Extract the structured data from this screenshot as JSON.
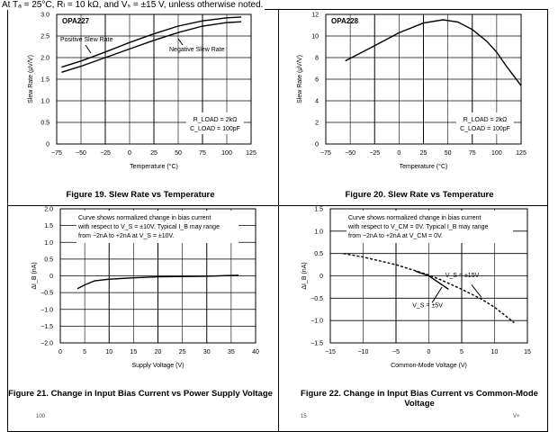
{
  "header": "At Tₐ = 25°C, Rₗ = 10 kΩ, and Vₛ = ±15 V, unless otherwise noted.",
  "bottom_partial": {
    "left": "100",
    "right_a": "15",
    "right_b": "V+"
  },
  "chart_data": [
    {
      "type": "line",
      "caption": "Figure 19. Slew Rate vs Temperature",
      "xlabel": "Temperature (°C)",
      "ylabel": "Slew Rate (µV/V)",
      "xlim": [
        -75,
        125
      ],
      "ylim": [
        0,
        3.0
      ],
      "xticks": [
        "−75",
        "−50",
        "−25",
        "0",
        "25",
        "50",
        "75",
        "100",
        "125"
      ],
      "yticks": [
        "0",
        "0.5",
        "1.0",
        "1.5",
        "2.0",
        "2.5",
        "3.0"
      ],
      "grid": true,
      "annotations": [
        "OPA227",
        "Positive Slew Rate",
        "Negative Slew Rate",
        "R_LOAD = 2kΩ",
        "C_LOAD = 100pF"
      ],
      "series": [
        {
          "name": "Positive Slew Rate",
          "style": "solid",
          "x": [
            -70,
            -50,
            -25,
            0,
            25,
            50,
            75,
            100,
            115
          ],
          "y": [
            1.78,
            1.92,
            2.13,
            2.35,
            2.55,
            2.73,
            2.85,
            2.92,
            2.94
          ]
        },
        {
          "name": "Negative Slew Rate",
          "style": "solid",
          "x": [
            -70,
            -50,
            -25,
            0,
            25,
            50,
            75,
            100,
            115
          ],
          "y": [
            1.66,
            1.8,
            2.0,
            2.2,
            2.4,
            2.58,
            2.73,
            2.81,
            2.83
          ]
        }
      ]
    },
    {
      "type": "line",
      "caption": "Figure 20. Slew Rate vs Temperature",
      "xlabel": "Temperature (°C)",
      "ylabel": "Slew Rate (µV/V)",
      "xlim": [
        -75,
        125
      ],
      "ylim": [
        0,
        12
      ],
      "xticks": [
        "−75",
        "−50",
        "−25",
        "0",
        "25",
        "50",
        "75",
        "100",
        "125"
      ],
      "yticks": [
        "0",
        "2",
        "4",
        "6",
        "8",
        "10",
        "12"
      ],
      "grid": true,
      "annotations": [
        "OPA228",
        "R_LOAD = 2kΩ",
        "C_LOAD = 100pF"
      ],
      "series": [
        {
          "style": "solid",
          "x": [
            -55,
            -25,
            0,
            25,
            45,
            60,
            75,
            90,
            100,
            110,
            125
          ],
          "y": [
            7.7,
            9.1,
            10.3,
            11.2,
            11.5,
            11.3,
            10.6,
            9.5,
            8.5,
            7.2,
            5.4
          ]
        }
      ]
    },
    {
      "type": "line",
      "caption": "Figure 21. Change in Input Bias Current vs Power Supply Voltage",
      "xlabel": "Supply Voltage (V)",
      "ylabel": "ΔI_B (nA)",
      "xlim": [
        0,
        40
      ],
      "ylim": [
        -2,
        2
      ],
      "xticks": [
        "0",
        "5",
        "10",
        "15",
        "20",
        "25",
        "30",
        "35",
        "40"
      ],
      "yticks": [
        "−2.0",
        "−1.5",
        "−1.0",
        "−0.5",
        "0",
        "0.5",
        "1.0",
        "1.5",
        "2.0"
      ],
      "grid": true,
      "annotations": [
        "Curve shows normalized change in bias current",
        "with respect to V_S = ±10V. Typical I_B may range",
        "from −2nA to +2nA at V_S = ±10V."
      ],
      "series": [
        {
          "style": "solid",
          "x": [
            3.5,
            5,
            7,
            10,
            15,
            20,
            30,
            36.5
          ],
          "y": [
            -0.38,
            -0.27,
            -0.15,
            -0.1,
            -0.06,
            -0.03,
            -0.01,
            0.02
          ]
        }
      ]
    },
    {
      "type": "line",
      "caption": "Figure 22. Change in Input Bias Current vs Common-Mode Voltage",
      "xlabel": "Common-Mode Voltage (V)",
      "ylabel": "ΔI_B (nA)",
      "xlim": [
        -15,
        15
      ],
      "ylim": [
        -1.5,
        1.5
      ],
      "xticks": [
        "−15",
        "−10",
        "−5",
        "0",
        "5",
        "10",
        "15"
      ],
      "yticks": [
        "−1.5",
        "−1.0",
        "−0.5",
        "0",
        "0.5",
        "1.0",
        "1.5"
      ],
      "grid": true,
      "annotations": [
        "Curve shows normalized change in bias current",
        "with respect to V_CM = 0V. Typical I_B may range",
        "from −2nA to +2nA at V_CM = 0V.",
        "V_S = ±15V",
        "V_S = ±5V"
      ],
      "series": [
        {
          "name": "V_S = ±15V",
          "style": "dashed",
          "x": [
            -13,
            -10,
            -5,
            0,
            2,
            5,
            8,
            10,
            13
          ],
          "y": [
            0.5,
            0.42,
            0.25,
            0.02,
            -0.1,
            -0.3,
            -0.52,
            -0.7,
            -1.05
          ]
        },
        {
          "name": "V_S = ±5V",
          "style": "solid",
          "x": [
            -2,
            0,
            2,
            3
          ],
          "y": [
            0.1,
            0,
            -0.2,
            -0.3
          ]
        }
      ]
    }
  ]
}
